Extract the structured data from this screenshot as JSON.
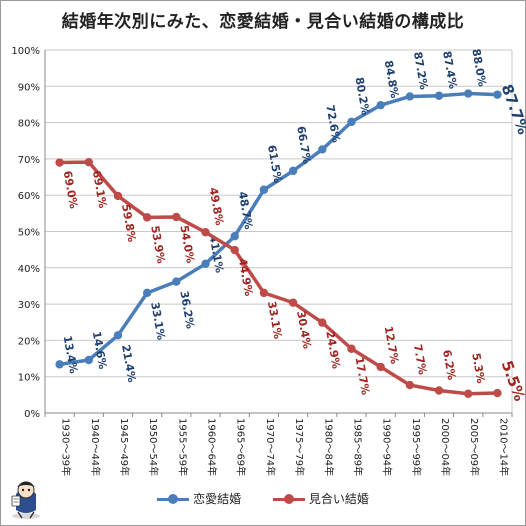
{
  "chart_data": {
    "type": "line",
    "title": "結婚年次別にみた、恋愛結婚・見合い結婚の構成比",
    "xlabel": "",
    "ylabel": "",
    "ylim": [
      0,
      100
    ],
    "y_ticks": [
      "0%",
      "10%",
      "20%",
      "30%",
      "40%",
      "50%",
      "60%",
      "70%",
      "80%",
      "90%",
      "100%"
    ],
    "grid": true,
    "legend_position": "bottom",
    "categories": [
      "1930～39年",
      "1940～44年",
      "1945～49年",
      "1950～54年",
      "1955～59年",
      "1960～64年",
      "1965～69年",
      "1970～74年",
      "1975～79年",
      "1980～84年",
      "1985～89年",
      "1990～94年",
      "1995～99年",
      "2000～04年",
      "2005～09年",
      "2010～14年"
    ],
    "series": [
      {
        "name": "恋愛結婚",
        "color": "#4a7ebb",
        "values": [
          13.4,
          14.6,
          21.4,
          33.1,
          36.2,
          41.1,
          48.7,
          61.5,
          66.7,
          72.6,
          80.2,
          84.8,
          87.2,
          87.4,
          88.0,
          87.7
        ],
        "labels": [
          "13.4%",
          "14.6%",
          "21.4%",
          "33.1%",
          "36.2%",
          "41.1%",
          "48.7%",
          "61.5%",
          "66.7%",
          "72.6%",
          "80.2%",
          "84.8%",
          "87.2%",
          "87.4%",
          "88.0%",
          "87.7%"
        ]
      },
      {
        "name": "見合い結婚",
        "color": "#be4b48",
        "values": [
          69.0,
          69.1,
          59.8,
          53.9,
          54.0,
          49.8,
          44.9,
          33.1,
          30.4,
          24.9,
          17.7,
          12.7,
          7.7,
          6.2,
          5.3,
          5.5
        ],
        "labels": [
          "69.0%",
          "69.1%",
          "59.8%",
          "53.9%",
          "54.0%",
          "49.8%",
          "44.9%",
          "33.1%",
          "30.4%",
          "24.9%",
          "17.7%",
          "12.7%",
          "7.7%",
          "6.2%",
          "5.3%",
          "5.5%"
        ]
      }
    ]
  },
  "colors": {
    "love": "#4a7ebb",
    "love_label": "#1f3f6e",
    "arranged": "#be4b48",
    "arranged_label": "#a02420",
    "grid": "#c8c8c8",
    "axis": "#888888"
  },
  "mascot_icon": "mascot-character-icon"
}
